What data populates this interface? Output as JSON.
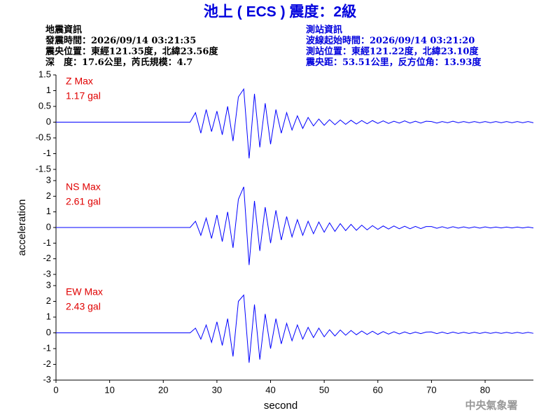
{
  "header": {
    "title": "池上 ( ECS ) 震度：2級",
    "event": [
      "地震資訊",
      "發震時間：2026/09/14 03:21:35",
      "震央位置：東經121.35度，北緯23.56度",
      "深　度：17.6公里，芮氏規模：4.7"
    ],
    "station": [
      "測站資訊",
      "波線起始時間：2026/09/14 03:21:20",
      "測站位置：東經121.22度，北緯23.10度",
      "震央距：53.51公里，反方位角：13.93度"
    ],
    "footer": "中央氣象署"
  },
  "chart_data": [
    {
      "type": "line",
      "annotation": [
        "Z Max",
        "1.17 gal"
      ],
      "ylim": [
        -1.5,
        1.5
      ],
      "yticks": [
        -1.5,
        -1,
        -0.5,
        0,
        0.5,
        1,
        1.5
      ],
      "xlim": [
        0,
        89
      ],
      "x": [
        0,
        1,
        2,
        3,
        4,
        5,
        6,
        7,
        8,
        9,
        10,
        11,
        12,
        13,
        14,
        15,
        16,
        17,
        18,
        19,
        20,
        21,
        22,
        23,
        24,
        25,
        26,
        27,
        28,
        29,
        30,
        31,
        32,
        33,
        34,
        35,
        36,
        37,
        38,
        39,
        40,
        41,
        42,
        43,
        44,
        45,
        46,
        47,
        48,
        49,
        50,
        51,
        52,
        53,
        54,
        55,
        56,
        57,
        58,
        59,
        60,
        61,
        62,
        63,
        64,
        65,
        66,
        67,
        68,
        69,
        70,
        71,
        72,
        73,
        74,
        75,
        76,
        77,
        78,
        79,
        80,
        81,
        82,
        83,
        84,
        85,
        86,
        87,
        88,
        89
      ],
      "series": [
        {
          "color": "#0000ff",
          "values": [
            0,
            0,
            0,
            0,
            0,
            0,
            0,
            0,
            0,
            0,
            0,
            0,
            0,
            0,
            0,
            0,
            0,
            0,
            0,
            0,
            0,
            0,
            0,
            0,
            0,
            0,
            0.3,
            -0.35,
            0.4,
            -0.3,
            0.35,
            -0.4,
            0.5,
            -0.6,
            0.8,
            1.05,
            -1.15,
            0.9,
            -0.8,
            0.6,
            -0.7,
            0.4,
            -0.35,
            0.3,
            -0.25,
            0.2,
            -0.2,
            0.15,
            -0.12,
            0.1,
            -0.1,
            0.08,
            -0.08,
            0.07,
            -0.07,
            0.06,
            -0.06,
            0.05,
            -0.05,
            0.05,
            -0.04,
            0.04,
            -0.04,
            0.03,
            -0.03,
            0.04,
            -0.03,
            0.03,
            -0.03,
            0.03,
            0.02,
            -0.03,
            0.02,
            -0.02,
            0.03,
            -0.02,
            0.02,
            -0.02,
            0.02,
            -0.02,
            0.02,
            -0.02,
            0.02,
            -0.02,
            0.02,
            -0.02,
            0.02,
            -0.02,
            0.02,
            -0.02
          ]
        }
      ]
    },
    {
      "type": "line",
      "annotation": [
        "NS Max",
        "2.61 gal"
      ],
      "ylabel": "acceleration",
      "ylim": [
        -3,
        3
      ],
      "yticks": [
        -3,
        -2,
        -1,
        0,
        1,
        2,
        3
      ],
      "xlim": [
        0,
        89
      ],
      "x": [
        0,
        1,
        2,
        3,
        4,
        5,
        6,
        7,
        8,
        9,
        10,
        11,
        12,
        13,
        14,
        15,
        16,
        17,
        18,
        19,
        20,
        21,
        22,
        23,
        24,
        25,
        26,
        27,
        28,
        29,
        30,
        31,
        32,
        33,
        34,
        35,
        36,
        37,
        38,
        39,
        40,
        41,
        42,
        43,
        44,
        45,
        46,
        47,
        48,
        49,
        50,
        51,
        52,
        53,
        54,
        55,
        56,
        57,
        58,
        59,
        60,
        61,
        62,
        63,
        64,
        65,
        66,
        67,
        68,
        69,
        70,
        71,
        72,
        73,
        74,
        75,
        76,
        77,
        78,
        79,
        80,
        81,
        82,
        83,
        84,
        85,
        86,
        87,
        88,
        89
      ],
      "series": [
        {
          "color": "#0000ff",
          "values": [
            0,
            0,
            0,
            0,
            0,
            0,
            0,
            0,
            0,
            0,
            0,
            0,
            0,
            0,
            0,
            0,
            0,
            0,
            0,
            0,
            0,
            0,
            0,
            0,
            0,
            0,
            0.4,
            -0.5,
            0.6,
            -0.7,
            0.8,
            -0.9,
            1.0,
            -1.3,
            1.8,
            2.6,
            -2.4,
            1.7,
            -1.5,
            1.3,
            -1.0,
            1.1,
            -0.8,
            0.7,
            -0.6,
            0.5,
            -0.5,
            0.4,
            -0.4,
            0.35,
            -0.3,
            0.3,
            -0.25,
            0.25,
            -0.2,
            0.2,
            -0.18,
            0.15,
            -0.15,
            0.12,
            -0.12,
            0.1,
            -0.1,
            0.1,
            -0.08,
            0.08,
            -0.08,
            0.07,
            -0.07,
            0.06,
            0.06,
            -0.05,
            0.05,
            -0.05,
            0.05,
            -0.04,
            0.04,
            -0.04,
            0.04,
            -0.04,
            0.04,
            -0.03,
            0.03,
            -0.03,
            0.03,
            -0.03,
            0.03,
            -0.03,
            0.03,
            -0.03
          ]
        }
      ]
    },
    {
      "type": "line",
      "annotation": [
        "EW Max",
        "2.43 gal"
      ],
      "xlabel": "second",
      "ylim": [
        -3,
        3
      ],
      "yticks": [
        -3,
        -2,
        -1,
        0,
        1,
        2,
        3
      ],
      "xlim": [
        0,
        89
      ],
      "xticks": [
        0,
        10,
        20,
        30,
        40,
        50,
        60,
        70,
        80
      ],
      "x": [
        0,
        1,
        2,
        3,
        4,
        5,
        6,
        7,
        8,
        9,
        10,
        11,
        12,
        13,
        14,
        15,
        16,
        17,
        18,
        19,
        20,
        21,
        22,
        23,
        24,
        25,
        26,
        27,
        28,
        29,
        30,
        31,
        32,
        33,
        34,
        35,
        36,
        37,
        38,
        39,
        40,
        41,
        42,
        43,
        44,
        45,
        46,
        47,
        48,
        49,
        50,
        51,
        52,
        53,
        54,
        55,
        56,
        57,
        58,
        59,
        60,
        61,
        62,
        63,
        64,
        65,
        66,
        67,
        68,
        69,
        70,
        71,
        72,
        73,
        74,
        75,
        76,
        77,
        78,
        79,
        80,
        81,
        82,
        83,
        84,
        85,
        86,
        87,
        88,
        89
      ],
      "series": [
        {
          "color": "#0000ff",
          "values": [
            0,
            0,
            0,
            0,
            0,
            0,
            0,
            0,
            0,
            0,
            0,
            0,
            0,
            0,
            0,
            0,
            0,
            0,
            0,
            0,
            0,
            0,
            0,
            0,
            0,
            0,
            0.3,
            -0.4,
            0.5,
            -0.6,
            0.7,
            -0.8,
            0.9,
            -1.5,
            2.0,
            2.4,
            -1.9,
            1.8,
            -1.7,
            1.2,
            -1.0,
            0.9,
            -0.7,
            0.6,
            -0.5,
            0.5,
            -0.4,
            0.35,
            -0.3,
            0.3,
            -0.25,
            0.2,
            -0.2,
            0.18,
            -0.15,
            0.15,
            -0.12,
            0.12,
            -0.1,
            0.1,
            -0.1,
            0.08,
            -0.08,
            0.07,
            -0.07,
            0.06,
            -0.06,
            0.05,
            -0.05,
            0.05,
            0.06,
            -0.05,
            0.05,
            -0.05,
            0.05,
            -0.04,
            0.04,
            -0.04,
            0.04,
            -0.04,
            0.04,
            -0.03,
            0.03,
            -0.03,
            0.03,
            -0.03,
            0.03,
            -0.03,
            0.03,
            -0.03
          ]
        }
      ]
    }
  ]
}
